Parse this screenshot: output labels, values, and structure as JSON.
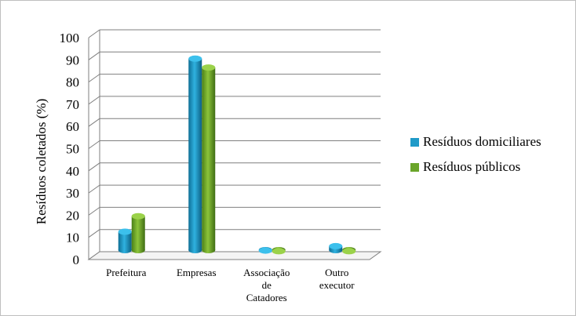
{
  "chart_data": {
    "type": "bar",
    "ylabel": "Resíduos coletados  (%)",
    "ylim": [
      0,
      100
    ],
    "yticks": [
      "0",
      "10",
      "20",
      "30",
      "40",
      "50",
      "60",
      "70",
      "80",
      "90",
      "100"
    ],
    "categories": [
      [
        "Prefeitura"
      ],
      [
        "Empresas"
      ],
      [
        "Associação",
        "de",
        "Catadores"
      ],
      [
        "Outro",
        "executor"
      ]
    ],
    "series": [
      {
        "name": "Resíduos domiciliares",
        "color": "#1f9ac8",
        "values": [
          9,
          87,
          0.5,
          2.5
        ]
      },
      {
        "name": "Resíduos públicos",
        "color": "#6aa52a",
        "values": [
          16,
          83,
          0.2,
          0.2
        ]
      }
    ],
    "grid": true,
    "legend": "right"
  }
}
